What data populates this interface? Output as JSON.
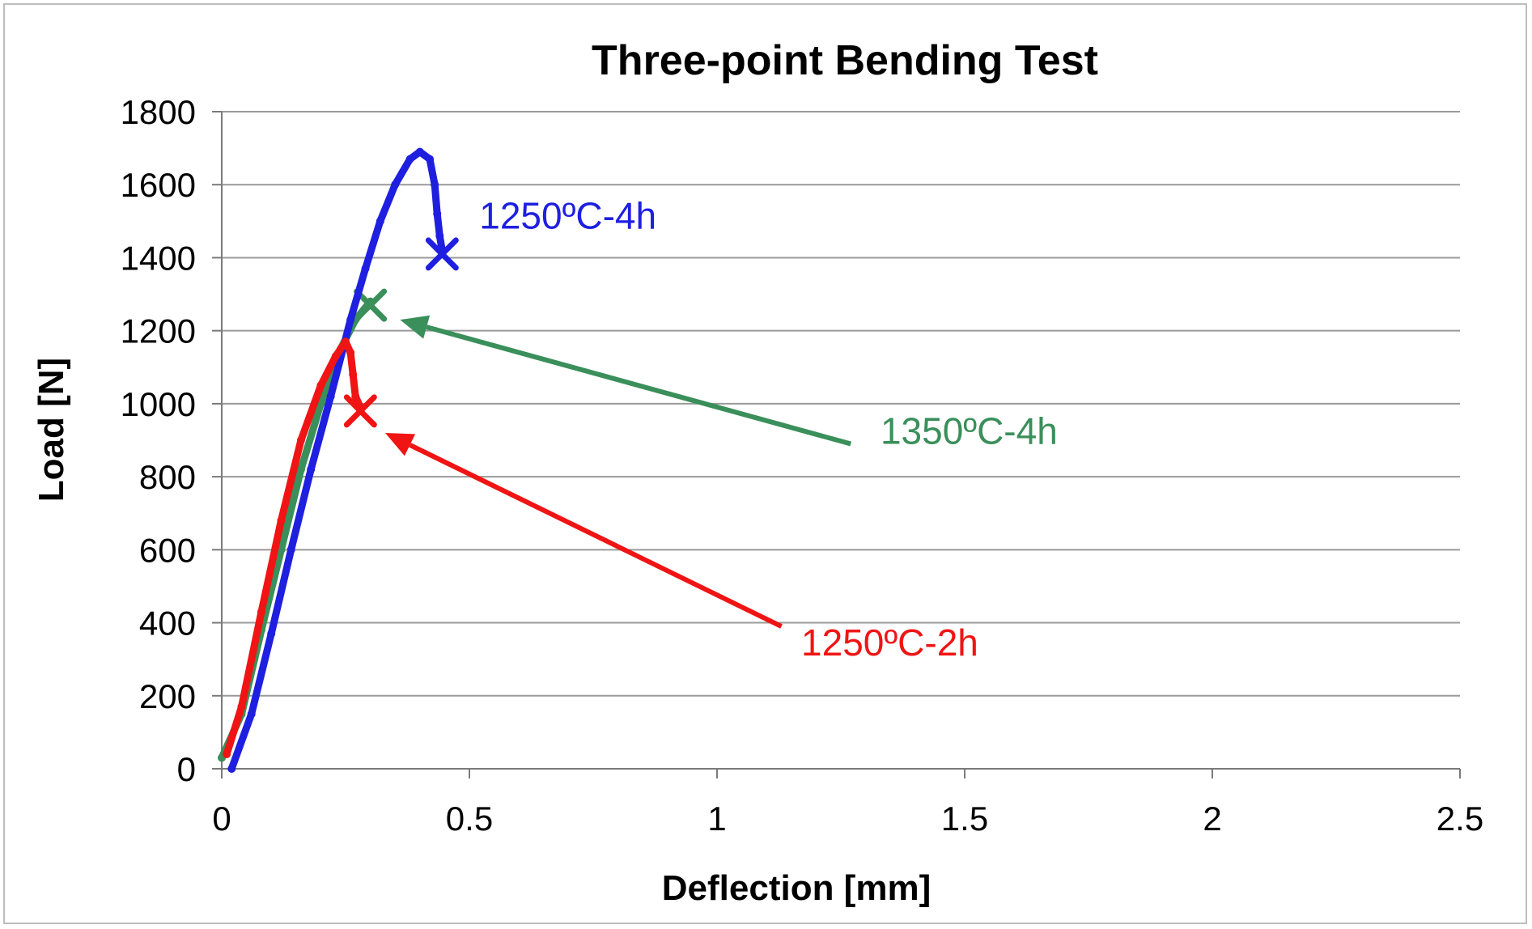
{
  "chart_data": {
    "type": "line",
    "title": "Three-point Bending Test",
    "xlabel": "Deflection [mm]",
    "ylabel": "Load [N]",
    "xlim": [
      0,
      2.5
    ],
    "ylim": [
      0,
      1800
    ],
    "xticks": [
      0,
      0.5,
      1,
      1.5,
      2,
      2.5
    ],
    "xtick_labels": [
      "0",
      "0.5",
      "1",
      "1.5",
      "2",
      "2.5"
    ],
    "yticks": [
      0,
      200,
      400,
      600,
      800,
      1000,
      1200,
      1400,
      1600,
      1800
    ],
    "ytick_labels": [
      "0",
      "200",
      "400",
      "600",
      "800",
      "1000",
      "1200",
      "1400",
      "1600",
      "1800"
    ],
    "grid": "horizontal",
    "legend": "none",
    "series": [
      {
        "name": "1350ºC-4h",
        "color": "#3a8f5a",
        "x": [
          0.0,
          0.04,
          0.08,
          0.12,
          0.16,
          0.2,
          0.24,
          0.27,
          0.3
        ],
        "y": [
          30,
          150,
          380,
          600,
          820,
          1000,
          1150,
          1230,
          1280
        ],
        "break": {
          "x": 0.3,
          "y": 1270
        }
      },
      {
        "name": "1250ºC-4h",
        "color": "#1f1fe0",
        "x": [
          0.02,
          0.06,
          0.1,
          0.14,
          0.18,
          0.22,
          0.26,
          0.29,
          0.32,
          0.35,
          0.38,
          0.4,
          0.42,
          0.43,
          0.435,
          0.44,
          0.445
        ],
        "y": [
          0,
          150,
          370,
          600,
          820,
          1020,
          1230,
          1370,
          1500,
          1600,
          1670,
          1690,
          1670,
          1600,
          1520,
          1460,
          1420
        ],
        "break": {
          "x": 0.445,
          "y": 1410
        }
      },
      {
        "name": "1250ºC-2h",
        "color": "#f01414",
        "x": [
          0.01,
          0.04,
          0.08,
          0.12,
          0.16,
          0.2,
          0.23,
          0.25,
          0.26,
          0.265,
          0.27,
          0.28
        ],
        "y": [
          40,
          170,
          430,
          680,
          900,
          1050,
          1130,
          1170,
          1140,
          1080,
          1020,
          990
        ],
        "break": {
          "x": 0.28,
          "y": 980
        }
      }
    ],
    "annotations": [
      {
        "text": "1250ºC-4h",
        "color": "#1f1fe0",
        "x": 0.52,
        "y": 1480,
        "series": "1250ºC-4h"
      },
      {
        "text": "1350ºC-4h",
        "color": "#3a8f5a",
        "x": 1.33,
        "y": 890,
        "series": "1350ºC-4h",
        "arrow_from": [
          1.27,
          890
        ],
        "arrow_to": [
          0.36,
          1230
        ]
      },
      {
        "text": "1250ºC-2h",
        "color": "#f01414",
        "x": 1.17,
        "y": 310,
        "series": "1250ºC-2h",
        "arrow_from": [
          1.13,
          390
        ],
        "arrow_to": [
          0.33,
          920
        ]
      }
    ]
  }
}
